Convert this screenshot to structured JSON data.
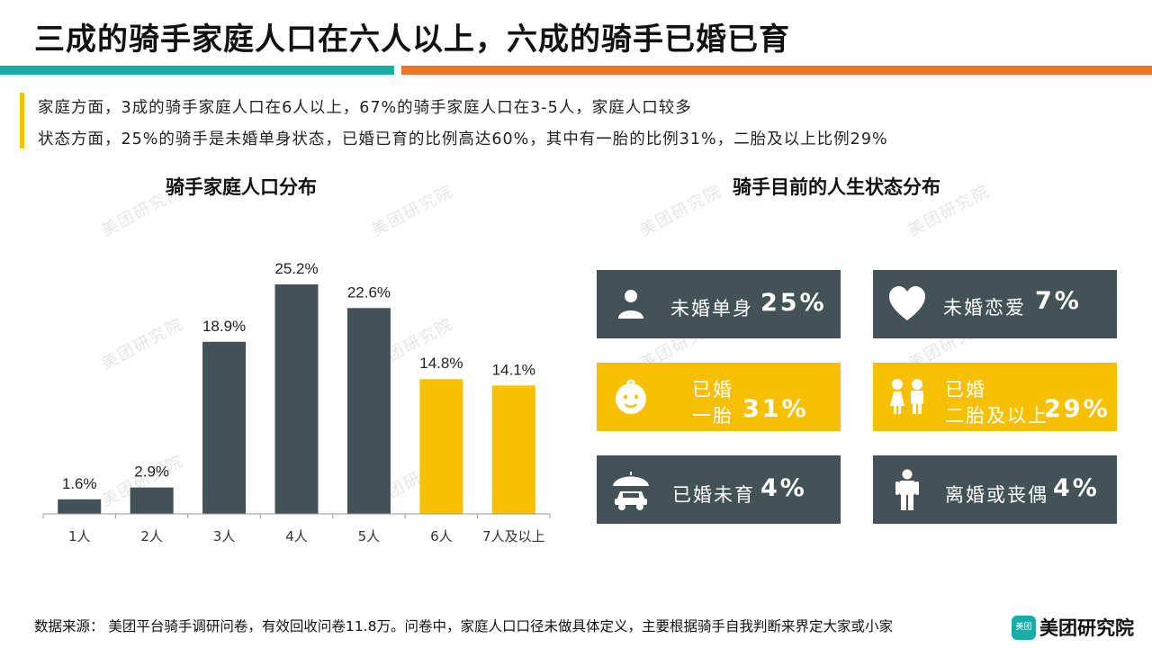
{
  "title": "三成的骑手家庭人口在六人以上，六成的骑手已婚已育",
  "summary": [
    "家庭方面，3成的骑手家庭人口在6人以上，67%的骑手家庭人口在3-5人，家庭人口较多",
    "状态方面，25%的骑手是未婚单身状态，已婚已育的比例高达60%，其中有一胎的比例31%，二胎及以上比例29%"
  ],
  "watermark": "美团研究院",
  "chart_data": {
    "type": "bar",
    "title": "骑手家庭人口分布",
    "categories": [
      "1人",
      "2人",
      "3人",
      "4人",
      "5人",
      "6人",
      "7人及以上"
    ],
    "values": [
      1.6,
      2.9,
      18.9,
      25.2,
      22.6,
      14.8,
      14.1
    ],
    "value_labels": [
      "1.6%",
      "2.9%",
      "18.9%",
      "25.2%",
      "22.6%",
      "14.8%",
      "14.1%"
    ],
    "unit": "%",
    "ylim": [
      0,
      25.2
    ],
    "colors": [
      "#435257",
      "#435257",
      "#435257",
      "#435257",
      "#435257",
      "#f6bf00",
      "#f6bf00"
    ],
    "grid": false,
    "legend": "none"
  },
  "status": {
    "title": "骑手目前的人生状态分布",
    "cards": [
      {
        "icon": "person-icon",
        "label": "未婚单身",
        "percent": "25%",
        "color": "#435257"
      },
      {
        "icon": "heart-icon",
        "label": "未婚恋爱",
        "percent": "7%",
        "color": "#435257"
      },
      {
        "icon": "baby-face-icon",
        "label_line1": "已婚",
        "label_line2": "一胎",
        "percent": "31%",
        "color": "#f6bf00"
      },
      {
        "icon": "two-children-icon",
        "label_line1": "已婚",
        "label_line2": "二胎及以上",
        "percent": "29%",
        "color": "#f6bf00"
      },
      {
        "icon": "umbrella-car-icon",
        "label": "已婚未育",
        "percent": "4%",
        "color": "#435257"
      },
      {
        "icon": "standing-person-icon",
        "label": "离婚或丧偶",
        "percent": "4%",
        "color": "#435257"
      }
    ]
  },
  "footer": {
    "source": "数据来源： 美团平台骑手调研问卷，有效回收问卷11.8万。问卷中，家庭人口口径未做具体定义，主要根据骑手自我判断来界定大家或小家",
    "logo_text": "美团",
    "brand": "美团研究院"
  },
  "colors": {
    "teal": "#1aaca6",
    "orange": "#ee7623",
    "dark": "#435257",
    "yellow": "#f6bf00"
  }
}
